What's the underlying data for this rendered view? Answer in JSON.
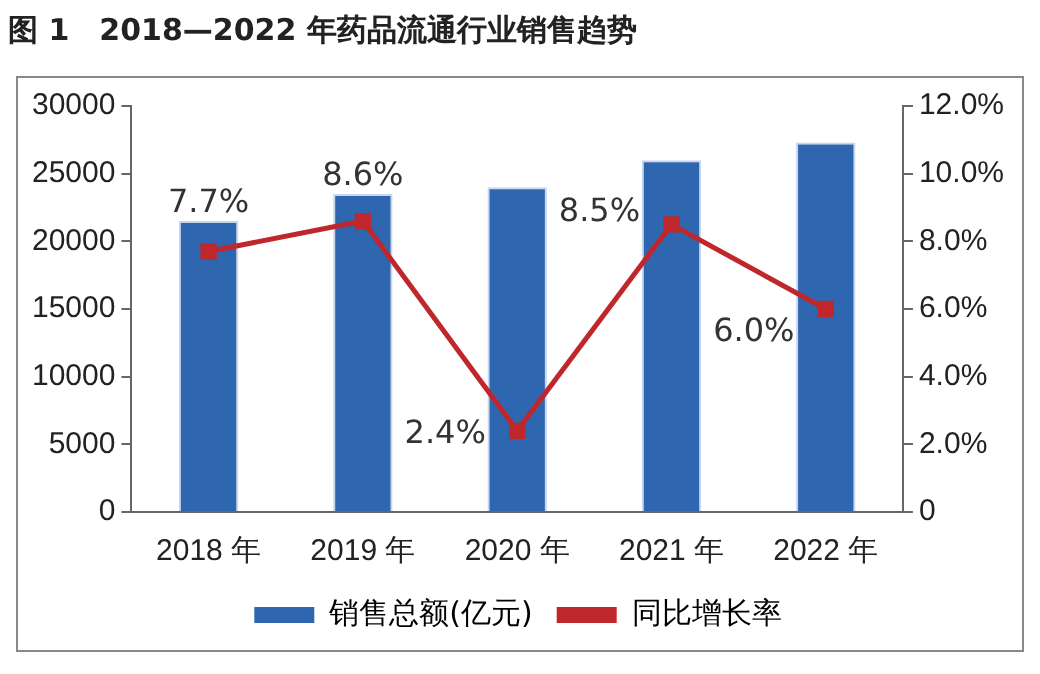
{
  "chart_data": {
    "type": "bar",
    "title": "图 1　2018—2022 年药品流通行业销售趋势",
    "categories": [
      "2018 年",
      "2019 年",
      "2020 年",
      "2021 年",
      "2022 年"
    ],
    "series": [
      {
        "name": "销售总额(亿元)",
        "color": "#2f66b0",
        "values": [
          21500,
          23500,
          24000,
          26000,
          27300
        ]
      },
      {
        "name": "同比增长率",
        "type": "line",
        "axis": "y2",
        "color": "#c0272d",
        "marker": "square",
        "values": [
          7.7,
          8.6,
          2.4,
          8.5,
          6.0
        ],
        "value_labels": [
          "7.7%",
          "8.6%",
          "2.4%",
          "8.5%",
          "6.0%"
        ]
      }
    ],
    "ylim": [
      0,
      30000
    ],
    "yticks": [
      0,
      5000,
      10000,
      15000,
      20000,
      25000,
      30000
    ],
    "y2lim": [
      0,
      12
    ],
    "y2ticks": [
      {
        "value": 0,
        "label": "0"
      },
      {
        "value": 2,
        "label": "2.0%"
      },
      {
        "value": 4,
        "label": "4.0%"
      },
      {
        "value": 6,
        "label": "6.0%"
      },
      {
        "value": 8,
        "label": "8.0%"
      },
      {
        "value": 10,
        "label": "10.0%"
      },
      {
        "value": 12,
        "label": "12.0%"
      }
    ],
    "grid": false,
    "legend": "bottom"
  }
}
